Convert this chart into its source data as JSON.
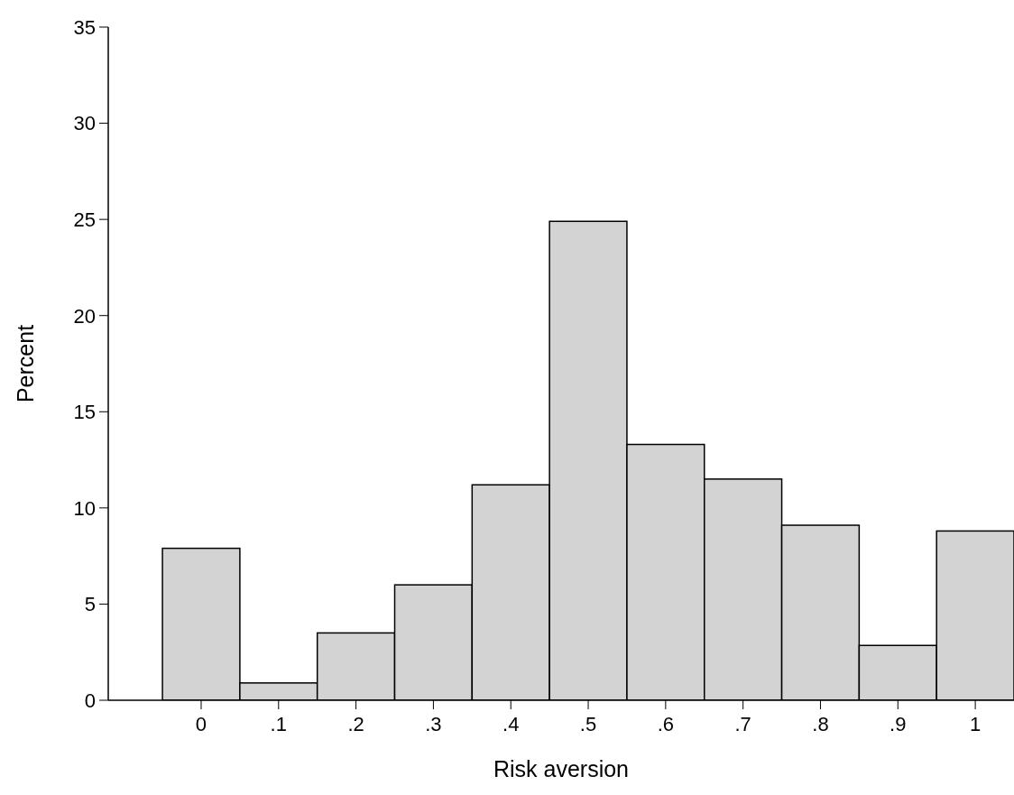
{
  "chart_data": {
    "type": "histogram",
    "xlabel": "Risk aversion",
    "ylabel": "Percent",
    "bins": [
      -0.05,
      0.05,
      0.15,
      0.25,
      0.35,
      0.45,
      0.55,
      0.65,
      0.75,
      0.85,
      0.95,
      1.05
    ],
    "values": [
      7.9,
      0.9,
      3.5,
      6.0,
      11.2,
      24.9,
      13.3,
      11.5,
      9.1,
      2.85,
      8.8
    ],
    "color": "#d3d3d3",
    "xlim": [
      -0.12,
      1.05
    ],
    "xticks": [
      0,
      {
        "value": 0.1,
        "label": ".1"
      },
      {
        "value": 0.2,
        "label": ".2"
      },
      {
        "value": 0.3,
        "label": ".3"
      },
      {
        "value": 0.4,
        "label": ".4"
      },
      {
        "value": 0.5,
        "label": ".5"
      },
      {
        "value": 0.6,
        "label": ".6"
      },
      {
        "value": 0.7,
        "label": ".7"
      },
      {
        "value": 0.8,
        "label": ".8"
      },
      {
        "value": 0.9,
        "label": ".9"
      },
      1
    ],
    "ylim": [
      0,
      35
    ],
    "yticks": [
      0,
      5,
      10,
      15,
      20,
      25,
      30,
      35
    ],
    "grid": false,
    "legend": false
  }
}
